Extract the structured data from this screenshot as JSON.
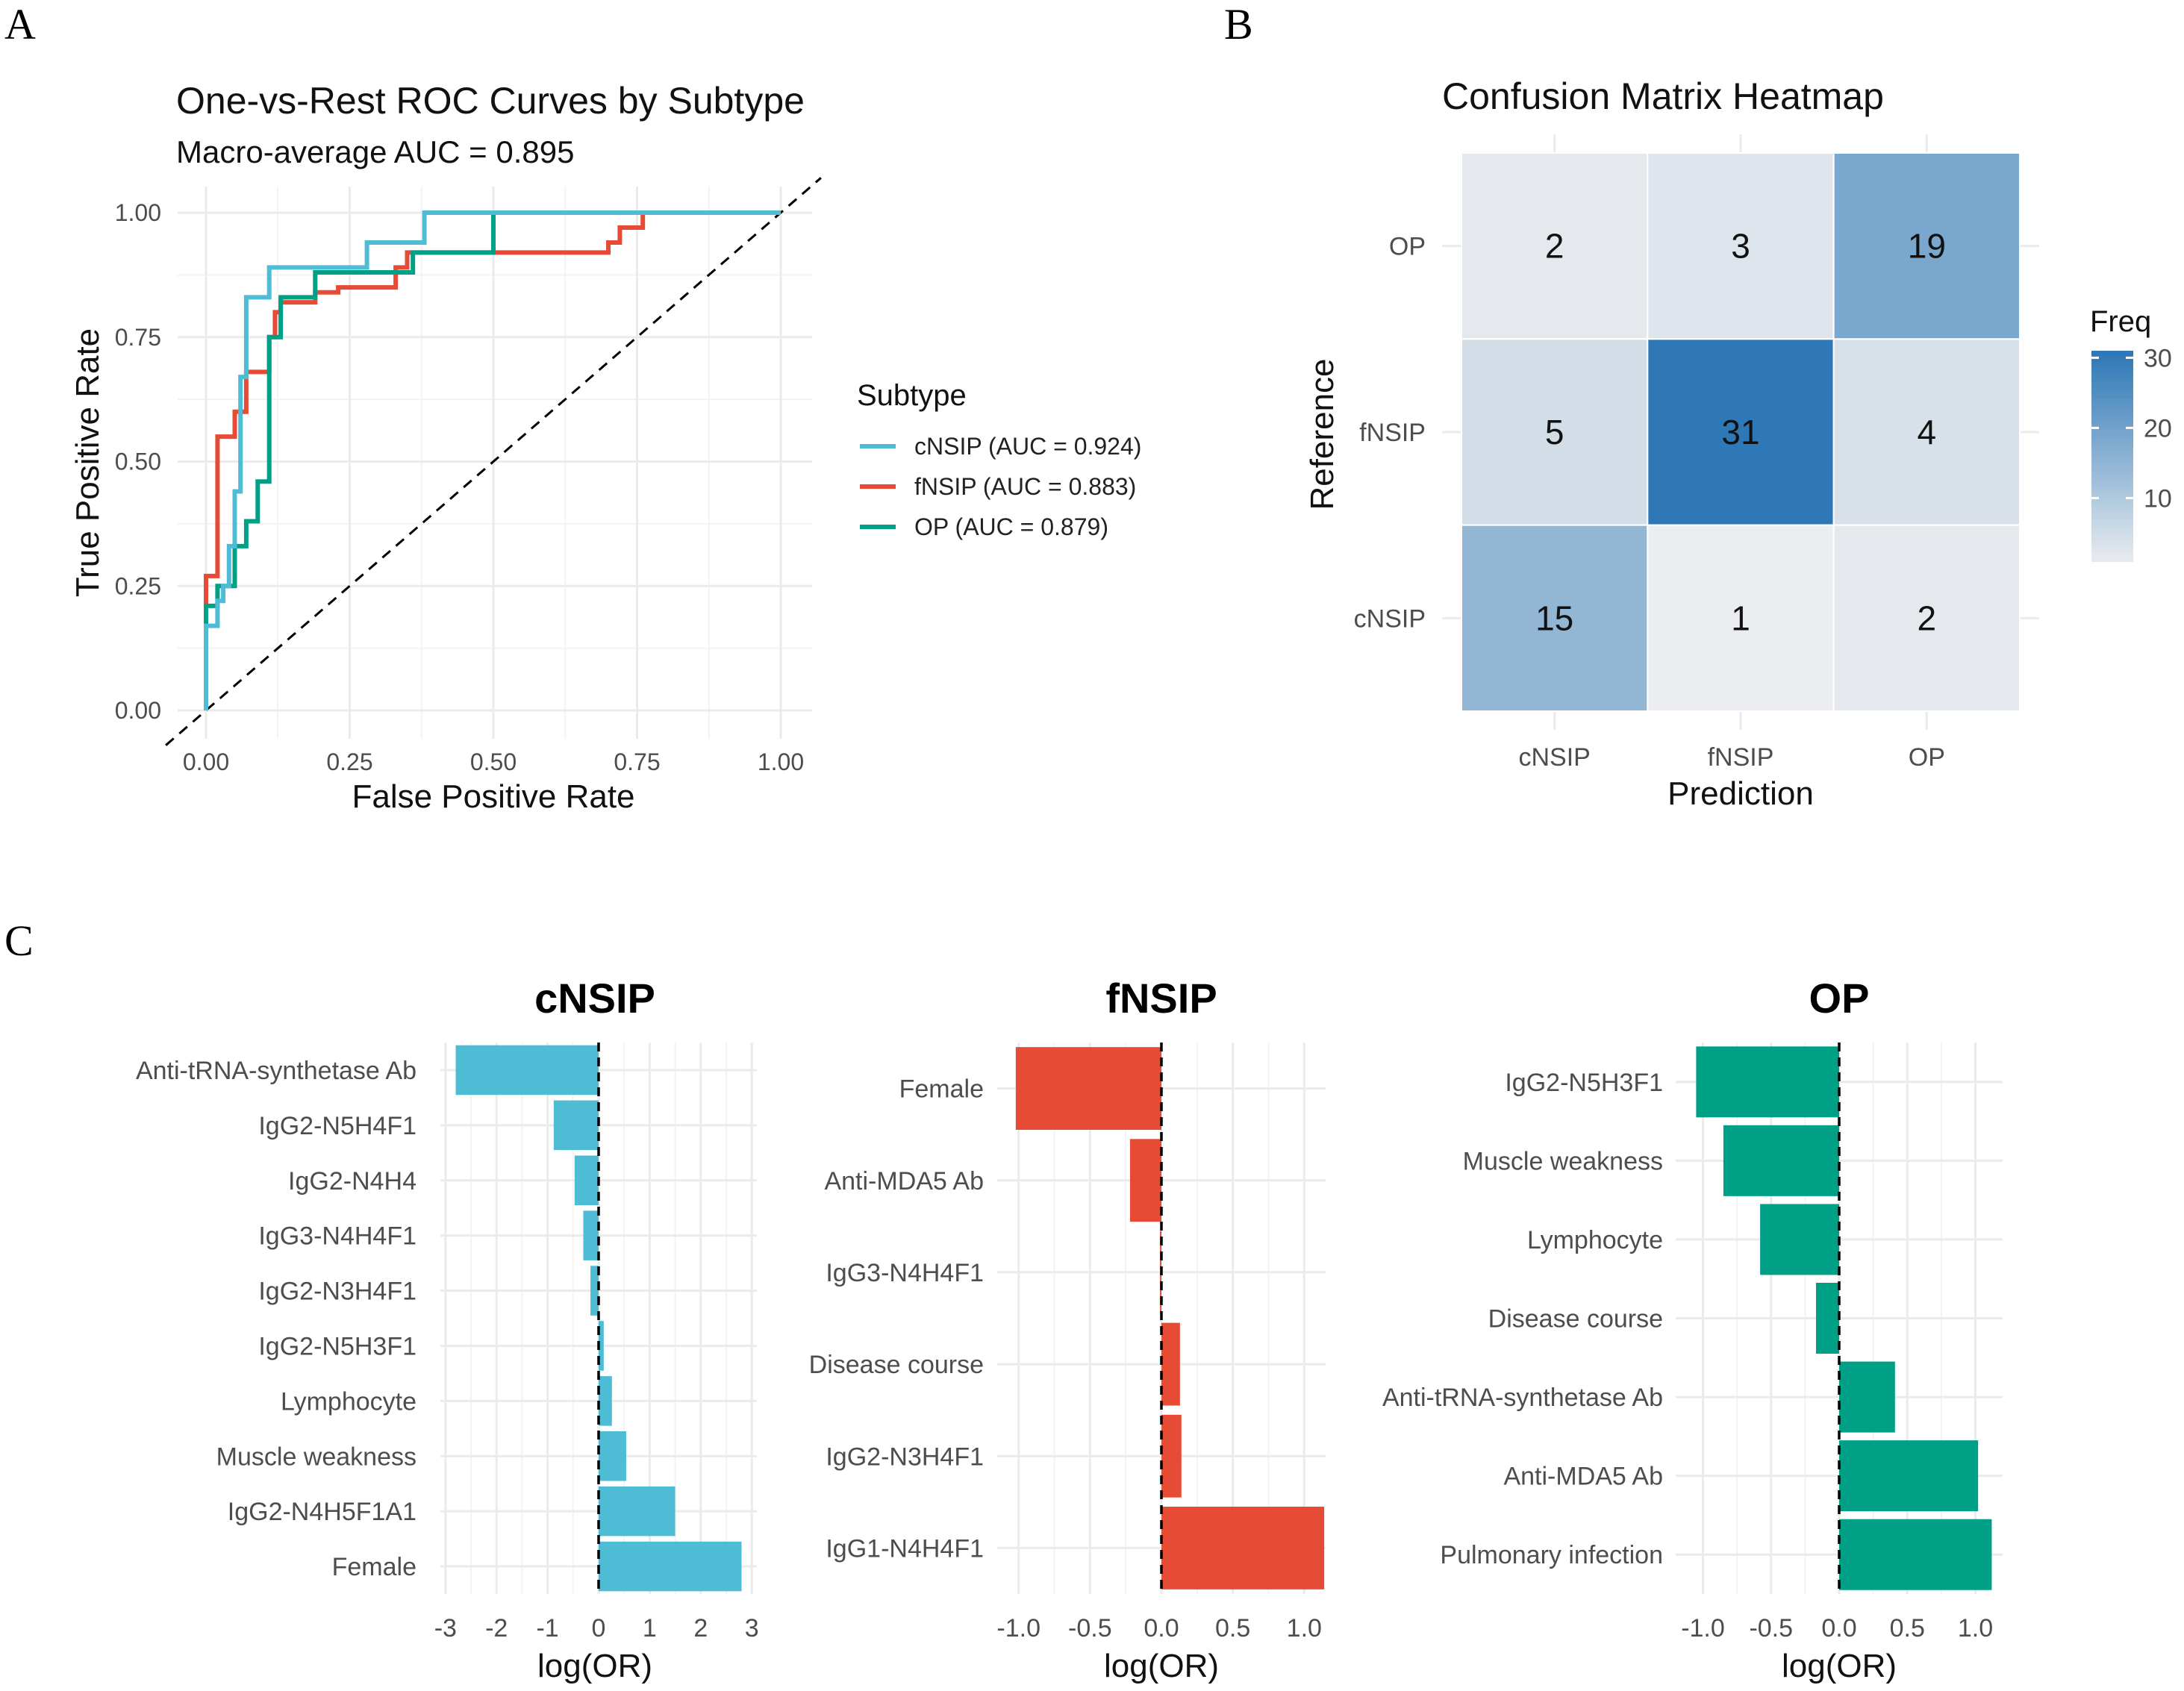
{
  "panels": {
    "a": {
      "letter": "A"
    },
    "b": {
      "letter": "B"
    },
    "c": {
      "letter": "C"
    }
  },
  "chart_data": [
    {
      "id": "roc",
      "type": "line",
      "title": "One-vs-Rest ROC Curves by Subtype",
      "subtitle": "Macro-average AUC = 0.895",
      "xlabel": "False Positive Rate",
      "ylabel": "True Positive Rate",
      "xlim": [
        0,
        1
      ],
      "ylim": [
        0,
        1
      ],
      "xticks": [
        "0.00",
        "0.25",
        "0.50",
        "0.75",
        "1.00"
      ],
      "yticks": [
        "0.00",
        "0.25",
        "0.50",
        "0.75",
        "1.00"
      ],
      "legend_title": "Subtype",
      "legend_position": "right",
      "reference_line": "diagonal dashed",
      "series": [
        {
          "name": "cNSIP (AUC = 0.924)",
          "color": "#4EBCD5",
          "points": [
            [
              0,
              0
            ],
            [
              0,
              0.17
            ],
            [
              0.02,
              0.17
            ],
            [
              0.02,
              0.22
            ],
            [
              0.03,
              0.22
            ],
            [
              0.03,
              0.25
            ],
            [
              0.04,
              0.25
            ],
            [
              0.04,
              0.33
            ],
            [
              0.05,
              0.33
            ],
            [
              0.05,
              0.44
            ],
            [
              0.06,
              0.44
            ],
            [
              0.06,
              0.67
            ],
            [
              0.07,
              0.67
            ],
            [
              0.07,
              0.83
            ],
            [
              0.11,
              0.83
            ],
            [
              0.11,
              0.89
            ],
            [
              0.28,
              0.89
            ],
            [
              0.28,
              0.94
            ],
            [
              0.38,
              0.94
            ],
            [
              0.38,
              1
            ],
            [
              1,
              1
            ]
          ]
        },
        {
          "name": "fNSIP (AUC = 0.883)",
          "color": "#E64B35",
          "points": [
            [
              0,
              0
            ],
            [
              0,
              0.27
            ],
            [
              0.02,
              0.27
            ],
            [
              0.02,
              0.55
            ],
            [
              0.05,
              0.55
            ],
            [
              0.05,
              0.6
            ],
            [
              0.07,
              0.6
            ],
            [
              0.07,
              0.68
            ],
            [
              0.11,
              0.68
            ],
            [
              0.11,
              0.75
            ],
            [
              0.12,
              0.75
            ],
            [
              0.12,
              0.8
            ],
            [
              0.13,
              0.8
            ],
            [
              0.13,
              0.82
            ],
            [
              0.19,
              0.82
            ],
            [
              0.19,
              0.84
            ],
            [
              0.23,
              0.84
            ],
            [
              0.23,
              0.85
            ],
            [
              0.33,
              0.85
            ],
            [
              0.33,
              0.89
            ],
            [
              0.35,
              0.89
            ],
            [
              0.35,
              0.92
            ],
            [
              0.7,
              0.92
            ],
            [
              0.7,
              0.94
            ],
            [
              0.72,
              0.94
            ],
            [
              0.72,
              0.97
            ],
            [
              0.76,
              0.97
            ],
            [
              0.76,
              1
            ],
            [
              1,
              1
            ]
          ]
        },
        {
          "name": "OP (AUC = 0.879)",
          "color": "#00A087",
          "points": [
            [
              0,
              0
            ],
            [
              0,
              0.21
            ],
            [
              0.02,
              0.21
            ],
            [
              0.02,
              0.25
            ],
            [
              0.05,
              0.25
            ],
            [
              0.05,
              0.33
            ],
            [
              0.07,
              0.33
            ],
            [
              0.07,
              0.38
            ],
            [
              0.09,
              0.38
            ],
            [
              0.09,
              0.46
            ],
            [
              0.11,
              0.46
            ],
            [
              0.11,
              0.75
            ],
            [
              0.13,
              0.75
            ],
            [
              0.13,
              0.83
            ],
            [
              0.19,
              0.83
            ],
            [
              0.19,
              0.88
            ],
            [
              0.36,
              0.88
            ],
            [
              0.36,
              0.92
            ],
            [
              0.5,
              0.92
            ],
            [
              0.5,
              1
            ],
            [
              1,
              1
            ]
          ]
        }
      ]
    },
    {
      "id": "confusion",
      "type": "heatmap",
      "title": "Confusion Matrix Heatmap",
      "xlabel": "Prediction",
      "ylabel": "Reference",
      "x_categories": [
        "cNSIP",
        "fNSIP",
        "OP"
      ],
      "y_categories": [
        "cNSIP",
        "fNSIP",
        "OP"
      ],
      "cells": [
        {
          "reference": "OP",
          "prediction": "cNSIP",
          "value": 2
        },
        {
          "reference": "OP",
          "prediction": "fNSIP",
          "value": 3
        },
        {
          "reference": "OP",
          "prediction": "OP",
          "value": 19
        },
        {
          "reference": "fNSIP",
          "prediction": "cNSIP",
          "value": 5
        },
        {
          "reference": "fNSIP",
          "prediction": "fNSIP",
          "value": 31
        },
        {
          "reference": "fNSIP",
          "prediction": "OP",
          "value": 4
        },
        {
          "reference": "cNSIP",
          "prediction": "cNSIP",
          "value": 15
        },
        {
          "reference": "cNSIP",
          "prediction": "fNSIP",
          "value": 1
        },
        {
          "reference": "cNSIP",
          "prediction": "OP",
          "value": 2
        }
      ],
      "legend_title": "Freq",
      "legend_ticks": [
        "10",
        "20",
        "30"
      ],
      "legend_tick_values": [
        10,
        20,
        30
      ],
      "color_low": "#EBEDF0",
      "color_high": "#2E78B7",
      "value_range": [
        1,
        31
      ]
    },
    {
      "id": "or-cnsip",
      "type": "bar",
      "orientation": "horizontal",
      "title": "cNSIP",
      "xlabel": "log(OR)",
      "color": "#4EBCD5",
      "xlim": [
        -3.1,
        3.1
      ],
      "xticks": [
        -3,
        -2,
        -1,
        0,
        1,
        2,
        3
      ],
      "xtick_labels": [
        "-3",
        "-2",
        "-1",
        "0",
        "1",
        "2",
        "3"
      ],
      "categories": [
        "Anti-tRNA-synthetase Ab",
        "IgG2-N5H4F1",
        "IgG2-N4H4",
        "IgG3-N4H4F1",
        "IgG2-N3H4F1",
        "IgG2-N5H3F1",
        "Lymphocyte",
        "Muscle weakness",
        "IgG2-N4H5F1A1",
        "Female"
      ],
      "values": [
        -2.8,
        -0.88,
        -0.47,
        -0.3,
        -0.16,
        0.1,
        0.26,
        0.54,
        1.5,
        2.8
      ]
    },
    {
      "id": "or-fnsip",
      "type": "bar",
      "orientation": "horizontal",
      "title": "fNSIP",
      "xlabel": "log(OR)",
      "color": "#E64B35",
      "xlim": [
        -1.15,
        1.15
      ],
      "xticks": [
        -1.0,
        -0.5,
        0.0,
        0.5,
        1.0
      ],
      "xtick_labels": [
        "-1.0",
        "-0.5",
        "0.0",
        "0.5",
        "1.0"
      ],
      "categories": [
        "Female",
        "Anti-MDA5 Ab",
        "IgG3-N4H4F1",
        "Disease course",
        "IgG2-N3H4F1",
        "IgG1-N4H4F1"
      ],
      "values": [
        -1.02,
        -0.22,
        -0.01,
        0.13,
        0.14,
        1.14
      ]
    },
    {
      "id": "or-op",
      "type": "bar",
      "orientation": "horizontal",
      "title": "OP",
      "xlabel": "log(OR)",
      "color": "#00A087",
      "xlim": [
        -1.2,
        1.2
      ],
      "xticks": [
        -1.0,
        -0.5,
        0.0,
        0.5,
        1.0
      ],
      "xtick_labels": [
        "-1.0",
        "-0.5",
        "0.0",
        "0.5",
        "1.0"
      ],
      "categories": [
        "IgG2-N5H3F1",
        "Muscle weakness",
        "Lymphocyte",
        "Disease course",
        "Anti-tRNA-synthetase Ab",
        "Anti-MDA5 Ab",
        "Pulmonary infection"
      ],
      "values": [
        -1.05,
        -0.85,
        -0.58,
        -0.17,
        0.41,
        1.02,
        1.12
      ]
    }
  ]
}
